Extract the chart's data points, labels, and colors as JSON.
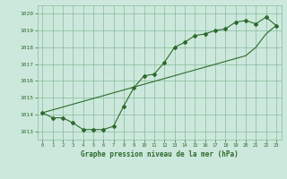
{
  "x": [
    0,
    1,
    2,
    3,
    4,
    5,
    6,
    7,
    8,
    9,
    10,
    11,
    12,
    13,
    14,
    15,
    16,
    17,
    18,
    19,
    20,
    21,
    22,
    23
  ],
  "y_main": [
    1014.1,
    1013.8,
    1013.8,
    1013.5,
    1013.1,
    1013.1,
    1013.1,
    1013.3,
    1014.5,
    1015.6,
    1016.3,
    1016.4,
    1017.1,
    1018.0,
    1018.3,
    1018.7,
    1018.8,
    1019.0,
    1019.1,
    1019.5,
    1019.6,
    1019.4,
    1019.8,
    1019.3
  ],
  "y_trend": [
    1014.1,
    1014.27,
    1014.44,
    1014.61,
    1014.78,
    1014.95,
    1015.12,
    1015.29,
    1015.46,
    1015.63,
    1015.8,
    1015.97,
    1016.14,
    1016.31,
    1016.48,
    1016.65,
    1016.82,
    1016.99,
    1017.16,
    1017.33,
    1017.5,
    1018.0,
    1018.8,
    1019.3
  ],
  "line_color": "#2d6a2d",
  "bg_color": "#cce8dc",
  "grid_color": "#88bb99",
  "xlabel": "Graphe pression niveau de la mer (hPa)",
  "ylim": [
    1012.5,
    1020.5
  ],
  "xlim": [
    -0.5,
    23.5
  ],
  "yticks": [
    1013,
    1014,
    1015,
    1016,
    1017,
    1018,
    1019,
    1020
  ],
  "xticks": [
    0,
    1,
    2,
    3,
    4,
    5,
    6,
    7,
    8,
    9,
    10,
    11,
    12,
    13,
    14,
    15,
    16,
    17,
    18,
    19,
    20,
    21,
    22,
    23
  ]
}
